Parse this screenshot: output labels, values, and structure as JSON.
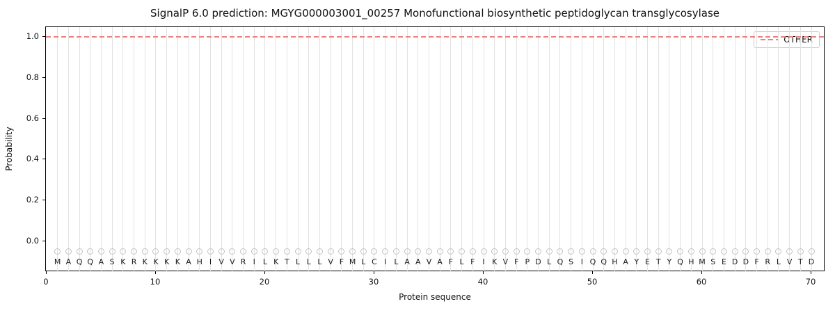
{
  "chart_data": {
    "type": "line",
    "title": "SignalP 6.0 prediction: MGYG000003001_00257 Monofunctional biosynthetic peptidoglycan transglycosylase",
    "xlabel": "Protein sequence",
    "ylabel": "Probability",
    "xlim": [
      -0.06,
      71.27
    ],
    "ylim": [
      -0.15,
      1.048
    ],
    "xticks": [
      {
        "v": 0,
        "label": "0"
      },
      {
        "v": 10,
        "label": "10"
      },
      {
        "v": 20,
        "label": "20"
      },
      {
        "v": 30,
        "label": "30"
      },
      {
        "v": 40,
        "label": "40"
      },
      {
        "v": 50,
        "label": "50"
      },
      {
        "v": 60,
        "label": "60"
      },
      {
        "v": 70,
        "label": "70"
      }
    ],
    "yticks": [
      {
        "v": 0.0,
        "label": "0.0"
      },
      {
        "v": 0.2,
        "label": "0.2"
      },
      {
        "v": 0.4,
        "label": "0.4"
      },
      {
        "v": 0.6,
        "label": "0.6"
      },
      {
        "v": 0.8,
        "label": "0.8"
      },
      {
        "v": 1.0,
        "label": "1.0"
      }
    ],
    "grid": "vertical line at each residue position",
    "grid_color": "#e2e2e2",
    "sequence": "MAQQASKRKKKKAHIVVRILKTLLLVFMLCILAAVAFLFIKVFPDLQSIQQHAYETYQHMSEDDFRLVTD",
    "marker_y": -0.05,
    "letter_y": -0.103,
    "series": [
      {
        "name": "OTHER",
        "style": "dashed",
        "color": "#ef7f7f",
        "constant_value": 1.0,
        "x_start": 1,
        "x_end": 70
      }
    ],
    "legend": {
      "position": "upper right",
      "entries": [
        {
          "label": "OTHER",
          "color": "#ef7f7f",
          "dash": true
        }
      ]
    }
  }
}
